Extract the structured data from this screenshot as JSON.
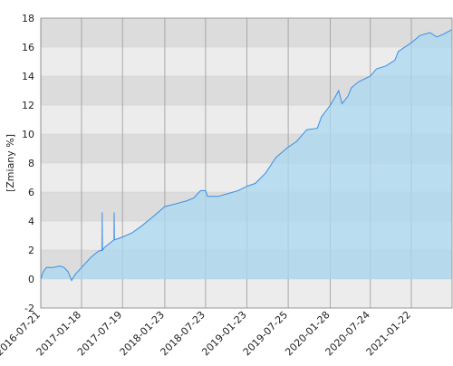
{
  "chart_data": {
    "type": "area",
    "y_label": "[Zmiany %]",
    "x": [
      "2016-07-21",
      "2016-08-01",
      "2016-08-15",
      "2016-09-15",
      "2016-10-15",
      "2016-11-01",
      "2016-11-20",
      "2016-12-05",
      "2016-12-20",
      "2017-01-18",
      "2017-03-01",
      "2017-04-01",
      "2017-04-19",
      "2017-04-20",
      "2017-04-21",
      "2017-05-01",
      "2017-06-11",
      "2017-06-12",
      "2017-06-13",
      "2017-07-19",
      "2017-09-01",
      "2017-10-15",
      "2017-12-01",
      "2018-01-23",
      "2018-03-15",
      "2018-05-01",
      "2018-06-01",
      "2018-07-01",
      "2018-07-23",
      "2018-08-01",
      "2018-09-15",
      "2018-11-01",
      "2018-12-15",
      "2019-01-23",
      "2019-03-01",
      "2019-04-15",
      "2019-06-01",
      "2019-07-25",
      "2019-09-01",
      "2019-10-15",
      "2019-12-01",
      "2019-12-20",
      "2020-01-28",
      "2020-02-20",
      "2020-03-05",
      "2020-03-20",
      "2020-04-15",
      "2020-05-01",
      "2020-06-01",
      "2020-07-24",
      "2020-08-20",
      "2020-10-01",
      "2020-11-10",
      "2020-11-25",
      "2021-01-22",
      "2021-03-01",
      "2021-04-15",
      "2021-05-15",
      "2021-06-15",
      "2021-07-20"
    ],
    "series": [
      {
        "color": "#3a8ee6",
        "values": [
          0,
          0.5,
          0.8,
          0.8,
          0.9,
          0.8,
          0.5,
          -0.1,
          0.3,
          0.8,
          1.5,
          1.9,
          2.0,
          4.6,
          2.0,
          2.2,
          2.7,
          4.6,
          2.7,
          2.9,
          3.2,
          3.7,
          4.3,
          5.0,
          5.2,
          5.4,
          5.6,
          6.1,
          6.1,
          5.7,
          5.7,
          5.9,
          6.1,
          6.4,
          6.6,
          7.3,
          8.4,
          9.1,
          9.5,
          10.3,
          10.4,
          11.2,
          12.0,
          12.6,
          13.0,
          12.1,
          12.6,
          13.2,
          13.6,
          14.0,
          14.5,
          14.7,
          15.1,
          15.7,
          16.3,
          16.8,
          17.0,
          16.7,
          16.9,
          17.2
        ]
      }
    ],
    "xlim": [
      "2016-07-21",
      "2021-07-22"
    ],
    "xticks": [
      "2016-07-21",
      "2017-01-18",
      "2017-07-19",
      "2018-01-23",
      "2018-07-23",
      "2019-01-23",
      "2019-07-25",
      "2020-01-28",
      "2020-07-24",
      "2021-01-22"
    ],
    "ylim": [
      -2,
      18
    ],
    "yticks": [
      -2,
      0,
      2,
      4,
      6,
      8,
      10,
      12,
      14,
      16,
      18
    ],
    "grid": true
  }
}
